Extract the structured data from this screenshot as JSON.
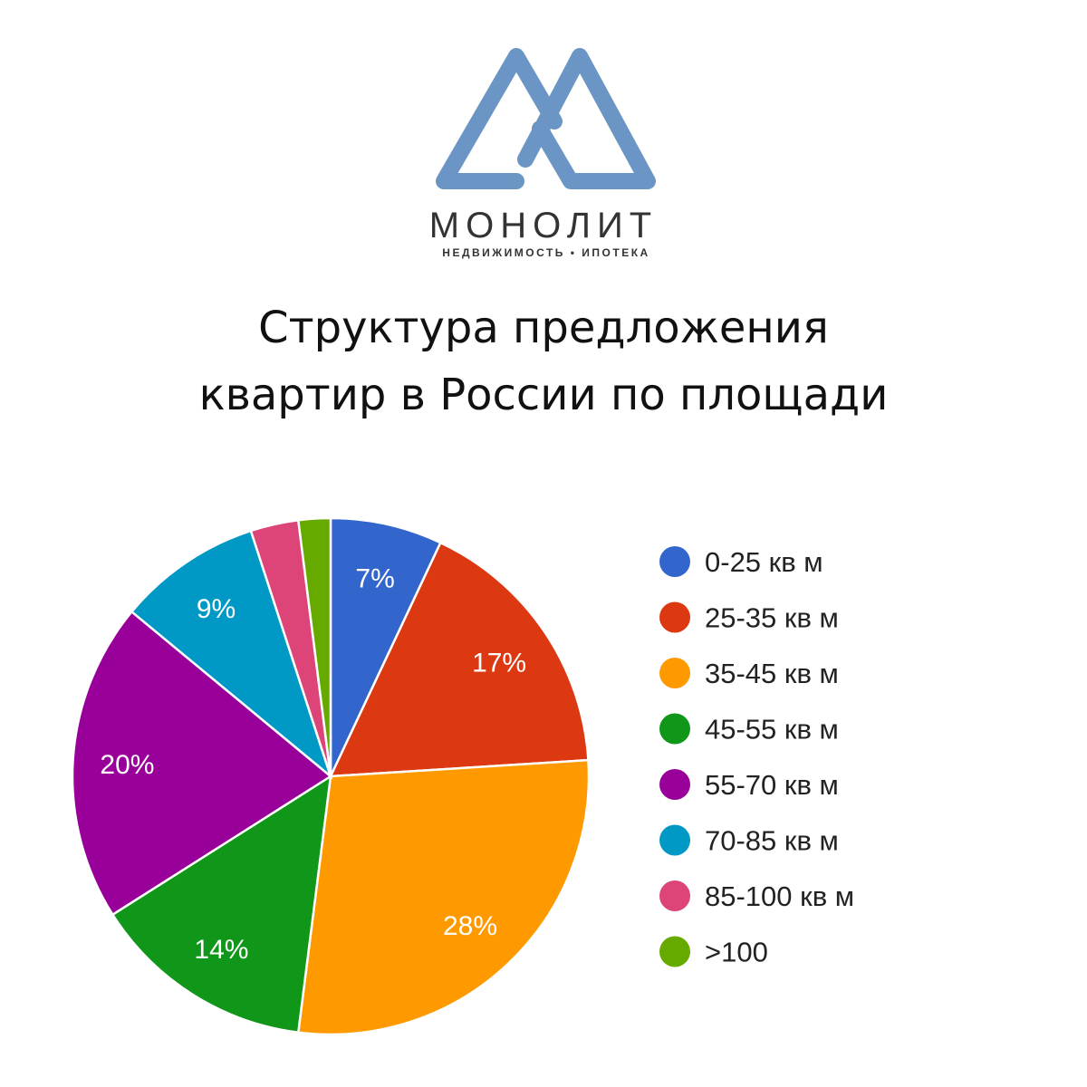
{
  "logo": {
    "name": "МОНОЛИТ",
    "tagline": "НЕДВИЖИМОСТЬ • ИПОТЕКА"
  },
  "chart_data": {
    "type": "pie",
    "title": [
      "Структура предложения",
      "квартир в России по площади"
    ],
    "categories": [
      "0-25 кв м",
      "25-35 кв м",
      "35-45 кв м",
      "45-55 кв м",
      "55-70 кв м",
      "70-85 кв м",
      "85-100 кв м",
      ">100"
    ],
    "values": [
      7,
      17,
      28,
      14,
      20,
      9,
      3,
      2
    ],
    "value_labels": [
      "7%",
      "17%",
      "28%",
      "14%",
      "20%",
      "9%",
      null,
      null
    ],
    "colors": [
      "#3366cc",
      "#dc3912",
      "#ff9900",
      "#109618",
      "#990099",
      "#0099c6",
      "#dd4477",
      "#66aa00"
    ],
    "legend": "right"
  }
}
